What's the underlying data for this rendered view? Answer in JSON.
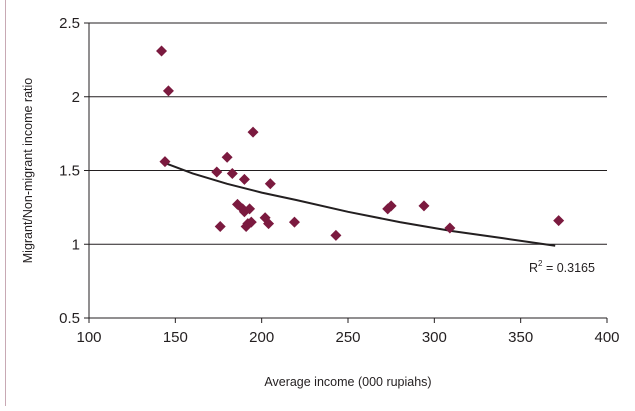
{
  "chart_data": {
    "type": "scatter",
    "title": "",
    "xlabel": "Average income (000 rupiahs)",
    "ylabel": "Migrant/Non-migrant income ratio",
    "xlim": [
      100,
      400
    ],
    "ylim": [
      0.5,
      2.5
    ],
    "x_ticks": [
      100,
      150,
      200,
      250,
      300,
      350,
      400
    ],
    "y_ticks": [
      0.5,
      1,
      1.5,
      2,
      2.5
    ],
    "x_tick_labels": [
      "100",
      "150",
      "200",
      "250",
      "300",
      "350",
      "400"
    ],
    "y_tick_labels": [
      "0.5",
      "1",
      "1.5",
      "2",
      "2.5"
    ],
    "grid": "horizontal",
    "legend": "none",
    "marker": "diamond",
    "marker_color": "#7b1a3f",
    "trendline_color": "#231f20",
    "points": [
      {
        "x": 142,
        "y": 2.31
      },
      {
        "x": 146,
        "y": 2.04
      },
      {
        "x": 144,
        "y": 1.56
      },
      {
        "x": 174,
        "y": 1.49
      },
      {
        "x": 176,
        "y": 1.12
      },
      {
        "x": 180,
        "y": 1.59
      },
      {
        "x": 183,
        "y": 1.48
      },
      {
        "x": 186,
        "y": 1.27
      },
      {
        "x": 190,
        "y": 1.44
      },
      {
        "x": 189,
        "y": 1.24
      },
      {
        "x": 190,
        "y": 1.22
      },
      {
        "x": 191,
        "y": 1.12
      },
      {
        "x": 193,
        "y": 1.24
      },
      {
        "x": 192,
        "y": 1.14
      },
      {
        "x": 194,
        "y": 1.15
      },
      {
        "x": 195,
        "y": 1.76
      },
      {
        "x": 202,
        "y": 1.18
      },
      {
        "x": 204,
        "y": 1.14
      },
      {
        "x": 205,
        "y": 1.41
      },
      {
        "x": 219,
        "y": 1.15
      },
      {
        "x": 243,
        "y": 1.06
      },
      {
        "x": 273,
        "y": 1.24
      },
      {
        "x": 275,
        "y": 1.26
      },
      {
        "x": 294,
        "y": 1.26
      },
      {
        "x": 309,
        "y": 1.11
      },
      {
        "x": 372,
        "y": 1.16
      }
    ],
    "trendline": {
      "type": "power",
      "x_range": [
        144,
        370
      ],
      "points": [
        {
          "x": 144,
          "y": 1.55
        },
        {
          "x": 160,
          "y": 1.48
        },
        {
          "x": 180,
          "y": 1.41
        },
        {
          "x": 200,
          "y": 1.35
        },
        {
          "x": 220,
          "y": 1.3
        },
        {
          "x": 250,
          "y": 1.22
        },
        {
          "x": 280,
          "y": 1.15
        },
        {
          "x": 310,
          "y": 1.09
        },
        {
          "x": 340,
          "y": 1.04
        },
        {
          "x": 370,
          "y": 0.99
        }
      ],
      "label_prefix": "R",
      "label_superscript": "2",
      "label_suffix": " = 0.3165"
    }
  }
}
